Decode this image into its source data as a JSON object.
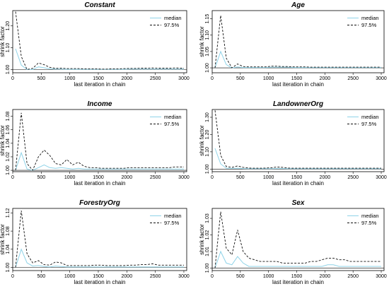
{
  "colors": {
    "median": "#8fd3e8",
    "q975": "#111111",
    "frame": "#000000"
  },
  "chart_data": [
    {
      "type": "line",
      "title": "Constant",
      "xlabel": "last iteration in chain",
      "ylabel": "shrink factor",
      "xlim": [
        0,
        3050
      ],
      "ylim": [
        0.985,
        1.27
      ],
      "xticks": [
        "0",
        "500",
        "1000",
        "1500",
        "2000",
        "2500",
        "3000"
      ],
      "yticks": [
        "1.00",
        "1.10",
        "1.20"
      ],
      "x": [
        50,
        150,
        250,
        350,
        450,
        550,
        650,
        750,
        850,
        950,
        1050,
        1150,
        1250,
        1350,
        1450,
        1550,
        1650,
        1750,
        1850,
        1950,
        2050,
        2150,
        2250,
        2350,
        2450,
        2550,
        2650,
        2750,
        2850,
        2950,
        3000
      ],
      "series": [
        {
          "name": "median",
          "values": [
            1.095,
            1.02,
            1.0,
            1.0,
            1.012,
            1.008,
            1.003,
            1.002,
            1.002,
            1.001,
            1.001,
            1.001,
            1.001,
            1.001,
            1.001,
            1.001,
            1.001,
            1.001,
            1.001,
            1.001,
            1.002,
            1.002,
            1.002,
            1.002,
            1.002,
            1.002,
            1.002,
            1.002,
            1.002,
            1.002,
            1.002
          ]
        },
        {
          "name": "97.5%",
          "values": [
            1.265,
            1.06,
            1.0,
            1.005,
            1.03,
            1.022,
            1.01,
            1.005,
            1.006,
            1.004,
            1.004,
            1.004,
            1.003,
            1.003,
            1.003,
            1.002,
            1.002,
            1.003,
            1.003,
            1.004,
            1.005,
            1.005,
            1.006,
            1.006,
            1.007,
            1.006,
            1.006,
            1.006,
            1.007,
            1.006,
            1.006
          ]
        }
      ],
      "legend": "top-right"
    },
    {
      "type": "line",
      "title": "Age",
      "xlabel": "last iteration in chain",
      "ylabel": "shrink factor",
      "xlim": [
        0,
        3050
      ],
      "ylim": [
        0.985,
        1.175
      ],
      "xticks": [
        "0",
        "500",
        "1000",
        "1500",
        "2000",
        "2500",
        "3000"
      ],
      "yticks": [
        "1.00",
        "1.05",
        "1.10",
        "1.15"
      ],
      "x": [
        50,
        150,
        250,
        350,
        450,
        550,
        650,
        750,
        850,
        950,
        1050,
        1150,
        1250,
        1350,
        1450,
        1550,
        1650,
        1750,
        1850,
        1950,
        2050,
        2150,
        2250,
        2350,
        2450,
        2550,
        2650,
        2750,
        2850,
        2950,
        3000
      ],
      "series": [
        {
          "name": "median",
          "values": [
            1.0,
            1.05,
            1.01,
            1.0,
            1.003,
            1.001,
            1.001,
            1.001,
            1.001,
            1.001,
            1.002,
            1.002,
            1.002,
            1.002,
            1.001,
            1.001,
            1.001,
            1.001,
            1.001,
            1.001,
            1.001,
            1.001,
            1.001,
            1.001,
            1.001,
            1.001,
            1.001,
            1.001,
            1.001,
            1.001,
            1.001
          ]
        },
        {
          "name": "97.5%",
          "values": [
            1.0,
            1.16,
            1.03,
            1.0,
            1.012,
            1.004,
            1.003,
            1.003,
            1.003,
            1.003,
            1.005,
            1.005,
            1.004,
            1.004,
            1.003,
            1.003,
            1.003,
            1.002,
            1.002,
            1.002,
            1.002,
            1.002,
            1.002,
            1.002,
            1.002,
            1.002,
            1.002,
            1.002,
            1.002,
            1.002,
            1.002
          ]
        }
      ],
      "legend": "top-right"
    },
    {
      "type": "line",
      "title": "Income",
      "xlabel": "last iteration in chain",
      "ylabel": "shrink factor",
      "xlim": [
        0,
        3050
      ],
      "ylim": [
        0.998,
        1.09
      ],
      "xticks": [
        "0",
        "500",
        "1000",
        "1500",
        "2000",
        "2500",
        "3000"
      ],
      "yticks": [
        "1.00",
        "1.02",
        "1.04",
        "1.06",
        "1.08"
      ],
      "x": [
        50,
        150,
        250,
        350,
        450,
        550,
        650,
        750,
        850,
        950,
        1050,
        1150,
        1250,
        1350,
        1450,
        1550,
        1650,
        1750,
        1850,
        1950,
        2050,
        2150,
        2250,
        2350,
        2450,
        2550,
        2650,
        2750,
        2850,
        2950,
        3000
      ],
      "series": [
        {
          "name": "median",
          "values": [
            1.0,
            1.026,
            1.002,
            1.0,
            1.004,
            1.008,
            1.004,
            1.003,
            1.004,
            1.003,
            1.002,
            1.003,
            1.002,
            1.002,
            1.002,
            1.002,
            1.002,
            1.002,
            1.002,
            1.002,
            1.002,
            1.002,
            1.002,
            1.002,
            1.002,
            1.002,
            1.002,
            1.002,
            1.002,
            1.002,
            1.002
          ]
        },
        {
          "name": "97.5%",
          "values": [
            1.0,
            1.085,
            1.01,
            1.0,
            1.02,
            1.03,
            1.022,
            1.01,
            1.008,
            1.016,
            1.008,
            1.012,
            1.006,
            1.004,
            1.004,
            1.003,
            1.003,
            1.003,
            1.003,
            1.003,
            1.004,
            1.004,
            1.004,
            1.004,
            1.004,
            1.004,
            1.004,
            1.004,
            1.005,
            1.005,
            1.005
          ]
        }
      ],
      "legend": "top-right"
    },
    {
      "type": "line",
      "title": "LandownerOrg",
      "xlabel": "last iteration in chain",
      "ylabel": "shrink factor",
      "xlim": [
        0,
        3050
      ],
      "ylim": [
        0.985,
        1.345
      ],
      "xticks": [
        "0",
        "500",
        "1000",
        "1500",
        "2000",
        "2500",
        "3000"
      ],
      "yticks": [
        "1.00",
        "1.10",
        "1.20",
        "1.30"
      ],
      "x": [
        50,
        150,
        250,
        350,
        450,
        550,
        650,
        750,
        850,
        950,
        1050,
        1150,
        1250,
        1350,
        1450,
        1550,
        1650,
        1750,
        1850,
        1950,
        2050,
        2150,
        2250,
        2350,
        2450,
        2550,
        2650,
        2750,
        2850,
        2950,
        3000
      ],
      "series": [
        {
          "name": "median",
          "values": [
            1.12,
            1.03,
            1.005,
            1.004,
            1.005,
            1.003,
            1.002,
            1.002,
            1.002,
            1.002,
            1.002,
            1.003,
            1.003,
            1.002,
            1.002,
            1.002,
            1.002,
            1.002,
            1.002,
            1.002,
            1.002,
            1.002,
            1.002,
            1.002,
            1.002,
            1.002,
            1.002,
            1.002,
            1.002,
            1.002,
            1.002
          ]
        },
        {
          "name": "97.5%",
          "values": [
            1.34,
            1.08,
            1.015,
            1.01,
            1.018,
            1.01,
            1.006,
            1.005,
            1.005,
            1.006,
            1.008,
            1.012,
            1.01,
            1.006,
            1.005,
            1.005,
            1.005,
            1.005,
            1.005,
            1.005,
            1.005,
            1.005,
            1.005,
            1.005,
            1.005,
            1.005,
            1.005,
            1.005,
            1.005,
            1.005,
            1.005
          ]
        }
      ],
      "legend": "top-right"
    },
    {
      "type": "line",
      "title": "ForestryOrg",
      "xlabel": "last iteration in chain",
      "ylabel": "shrink factor",
      "xlim": [
        0,
        3050
      ],
      "ylim": [
        0.993,
        1.13
      ],
      "xticks": [
        "0",
        "500",
        "1000",
        "1500",
        "2000",
        "2500",
        "3000"
      ],
      "yticks": [
        "1.00",
        "1.04",
        "1.08",
        "1.12"
      ],
      "x": [
        50,
        150,
        250,
        350,
        450,
        550,
        650,
        750,
        850,
        950,
        1050,
        1150,
        1250,
        1350,
        1450,
        1550,
        1650,
        1750,
        1850,
        1950,
        2050,
        2150,
        2250,
        2350,
        2450,
        2550,
        2650,
        2750,
        2850,
        2950,
        3000
      ],
      "series": [
        {
          "name": "median",
          "values": [
            1.0,
            1.04,
            1.01,
            1.003,
            1.004,
            1.002,
            1.001,
            1.003,
            1.002,
            1.001,
            1.001,
            1.001,
            1.001,
            1.001,
            1.001,
            1.001,
            1.001,
            1.001,
            1.001,
            1.001,
            1.001,
            1.001,
            1.001,
            1.001,
            1.001,
            1.001,
            1.001,
            1.001,
            1.001,
            1.001,
            1.001
          ]
        },
        {
          "name": "97.5%",
          "values": [
            1.0,
            1.125,
            1.03,
            1.01,
            1.015,
            1.006,
            1.005,
            1.012,
            1.01,
            1.004,
            1.004,
            1.004,
            1.004,
            1.004,
            1.005,
            1.005,
            1.004,
            1.004,
            1.004,
            1.004,
            1.005,
            1.005,
            1.006,
            1.006,
            1.008,
            1.005,
            1.005,
            1.005,
            1.005,
            1.005,
            1.005
          ]
        }
      ],
      "legend": "top-right"
    },
    {
      "type": "line",
      "title": "Sex",
      "xlabel": "last iteration in chain",
      "ylabel": "shrink factor",
      "xlim": [
        0,
        3050
      ],
      "ylim": [
        0.9985,
        1.036
      ],
      "xticks": [
        "0",
        "500",
        "1000",
        "1500",
        "2000",
        "2500",
        "3000"
      ],
      "yticks": [
        "1.00",
        "1.01",
        "1.02",
        "1.03"
      ],
      "x": [
        50,
        150,
        250,
        350,
        450,
        550,
        650,
        750,
        850,
        950,
        1050,
        1150,
        1250,
        1350,
        1450,
        1550,
        1650,
        1750,
        1850,
        1950,
        2050,
        2150,
        2250,
        2350,
        2450,
        2550,
        2650,
        2750,
        2850,
        2950,
        3000
      ],
      "series": [
        {
          "name": "median",
          "values": [
            1.0,
            1.01,
            1.003,
            1.002,
            1.007,
            1.003,
            1.001,
            1.001,
            1.001,
            1.001,
            1.001,
            1.001,
            1.001,
            1.001,
            1.001,
            1.001,
            1.001,
            1.001,
            1.001,
            1.001,
            1.002,
            1.002,
            1.001,
            1.001,
            1.001,
            1.001,
            1.001,
            1.001,
            1.001,
            1.001,
            1.001
          ]
        },
        {
          "name": "97.5%",
          "values": [
            1.0,
            1.034,
            1.012,
            1.008,
            1.023,
            1.01,
            1.006,
            1.005,
            1.004,
            1.004,
            1.004,
            1.004,
            1.003,
            1.003,
            1.003,
            1.003,
            1.003,
            1.004,
            1.004,
            1.005,
            1.006,
            1.006,
            1.005,
            1.005,
            1.004,
            1.004,
            1.004,
            1.004,
            1.004,
            1.004,
            1.004
          ]
        }
      ],
      "legend": "top-right"
    }
  ]
}
